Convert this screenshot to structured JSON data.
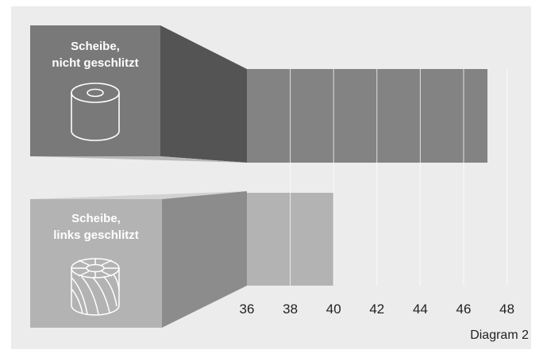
{
  "chart_data": {
    "type": "bar",
    "orientation": "horizontal",
    "categories": [
      "Scheibe, nicht geschlitzt",
      "Scheibe, links geschlitzt"
    ],
    "values": [
      47.1,
      40.0
    ],
    "xlim": [
      36,
      48
    ],
    "xticks": [
      36,
      38,
      40,
      42,
      44,
      46,
      48
    ],
    "grid": true,
    "colors": {
      "panel": "#ececec",
      "bar_dark": "#838383",
      "bar_light": "#b3b3b3",
      "box_dark": "#797979",
      "box_light": "#b3b3b3",
      "wedge_dark": "#545454",
      "wedge_light": "#8c8c8c",
      "gridline": "#ffffff"
    }
  },
  "labels": {
    "box1_line1": "Scheibe,",
    "box1_line2": "nicht geschlitzt",
    "box2_line1": "Scheibe,",
    "box2_line2": "links geschlitzt"
  },
  "icons": [
    "plain-disc-icon",
    "slotted-disc-icon"
  ],
  "footer": "Diagram 2"
}
